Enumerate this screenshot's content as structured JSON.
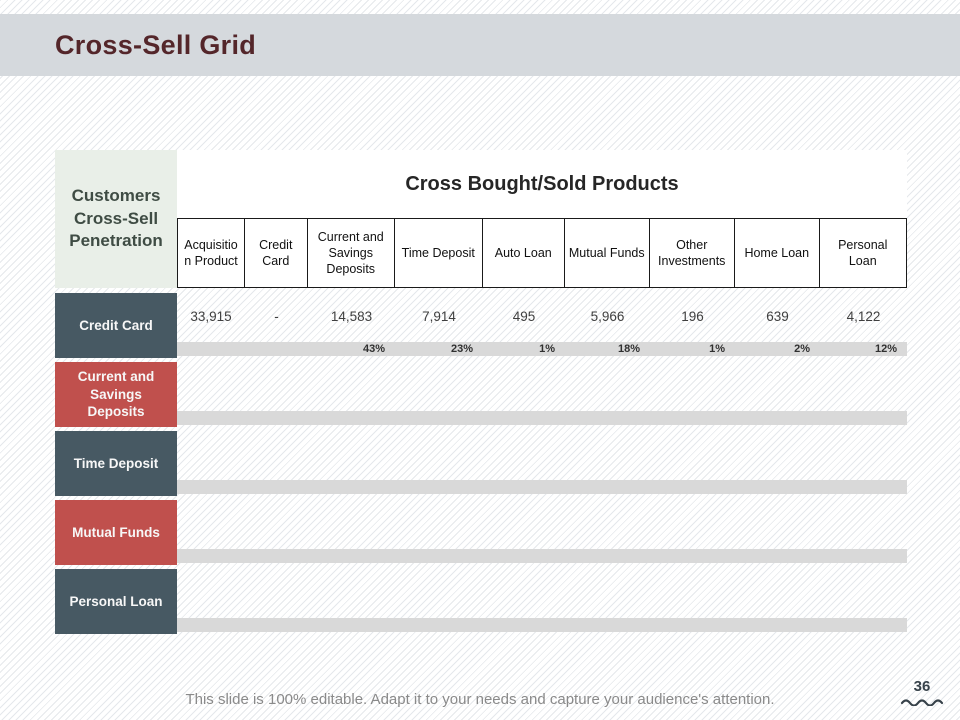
{
  "slide": {
    "title": "Cross-Sell Grid",
    "footer": "This slide is 100% editable. Adapt it to your needs and capture your audience's attention.",
    "page_number": "36"
  },
  "table": {
    "corner_header": "Customers Cross-Sell Penetration",
    "span_header": "Cross Bought/Sold Products",
    "columns": [
      "Acquisition Product",
      "Credit Card",
      "Current and Savings Deposits",
      "Time Deposit",
      "Auto Loan",
      "Mutual Funds",
      "Other Investments",
      "Home Loan",
      "Personal Loan"
    ],
    "rows": [
      {
        "label": "Credit Card",
        "style": "slate",
        "values": [
          "33,915",
          "-",
          "14,583",
          "7,914",
          "495",
          "5,966",
          "196",
          "639",
          "4,122"
        ],
        "percents": [
          "",
          "",
          "43%",
          "23%",
          "1%",
          "18%",
          "1%",
          "2%",
          "12%"
        ]
      },
      {
        "label": "Current and Savings Deposits",
        "style": "red",
        "values": [
          "",
          "",
          "",
          "",
          "",
          "",
          "",
          "",
          ""
        ],
        "percents": [
          "",
          "",
          "",
          "",
          "",
          "",
          "",
          "",
          ""
        ]
      },
      {
        "label": "Time Deposit",
        "style": "slate",
        "values": [
          "",
          "",
          "",
          "",
          "",
          "",
          "",
          "",
          ""
        ],
        "percents": [
          "",
          "",
          "",
          "",
          "",
          "",
          "",
          "",
          ""
        ]
      },
      {
        "label": "Mutual Funds",
        "style": "red",
        "values": [
          "",
          "",
          "",
          "",
          "",
          "",
          "",
          "",
          ""
        ],
        "percents": [
          "",
          "",
          "",
          "",
          "",
          "",
          "",
          "",
          ""
        ]
      },
      {
        "label": "Personal Loan",
        "style": "slate",
        "values": [
          "",
          "",
          "",
          "",
          "",
          "",
          "",
          "",
          ""
        ],
        "percents": [
          "",
          "",
          "",
          "",
          "",
          "",
          "",
          "",
          ""
        ]
      }
    ]
  },
  "colors": {
    "title_maroon": "#54262a",
    "title_band_gray": "#d5d9dd",
    "corner_green": "#e9efe8",
    "row_slate": "#475963",
    "row_red": "#c0504d",
    "percent_band_gray": "#d9d9d9"
  }
}
